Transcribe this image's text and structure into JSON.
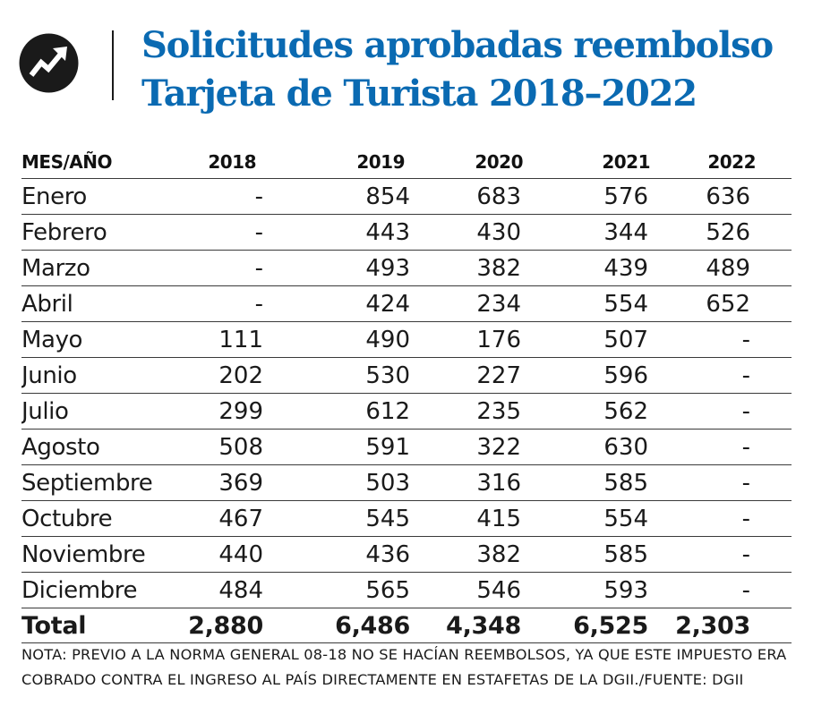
{
  "header": {
    "logo_icon": "trend-arrow-icon",
    "title_line1": "Solicitudes aprobadas reembolso",
    "title_line2": "Tarjeta de Turista 2018–2022",
    "title_color": "#0a6ab2"
  },
  "chart_data": {
    "type": "table",
    "columns": [
      "MES/AÑO",
      "2018",
      "2019",
      "2020",
      "2021",
      "2022"
    ],
    "rows": [
      {
        "label": "Enero",
        "values": [
          "-",
          "854",
          "683",
          "576",
          "636"
        ]
      },
      {
        "label": "Febrero",
        "values": [
          "-",
          "443",
          "430",
          "344",
          "526"
        ]
      },
      {
        "label": "Marzo",
        "values": [
          "-",
          "493",
          "382",
          "439",
          "489"
        ]
      },
      {
        "label": "Abril",
        "values": [
          "-",
          "424",
          "234",
          "554",
          "652"
        ]
      },
      {
        "label": "Mayo",
        "values": [
          "111",
          "490",
          "176",
          "507",
          "-"
        ]
      },
      {
        "label": "Junio",
        "values": [
          "202",
          "530",
          "227",
          "596",
          "-"
        ]
      },
      {
        "label": "Julio",
        "values": [
          "299",
          "612",
          "235",
          "562",
          "-"
        ]
      },
      {
        "label": "Agosto",
        "values": [
          "508",
          "591",
          "322",
          "630",
          "-"
        ]
      },
      {
        "label": "Septiembre",
        "values": [
          "369",
          "503",
          "316",
          "585",
          "-"
        ]
      },
      {
        "label": "Octubre",
        "values": [
          "467",
          "545",
          "415",
          "554",
          "-"
        ]
      },
      {
        "label": "Noviembre",
        "values": [
          "440",
          "436",
          "382",
          "585",
          "-"
        ]
      },
      {
        "label": "Diciembre",
        "values": [
          "484",
          "565",
          "546",
          "593",
          "-"
        ]
      }
    ],
    "total": {
      "label": "Total",
      "values": [
        "2,880",
        "6,486",
        "4,348",
        "6,525",
        "2,303"
      ]
    }
  },
  "footer": {
    "note": "NOTA: PREVIO A LA NORMA GENERAL 08-18 NO SE HACÍAN REEMBOLSOS, YA QUE ESTE IMPUESTO ERA COBRADO CONTRA EL INGRESO AL PAÍS DIRECTAMENTE EN ESTAFETAS DE LA DGII./FUENTE: DGII"
  }
}
